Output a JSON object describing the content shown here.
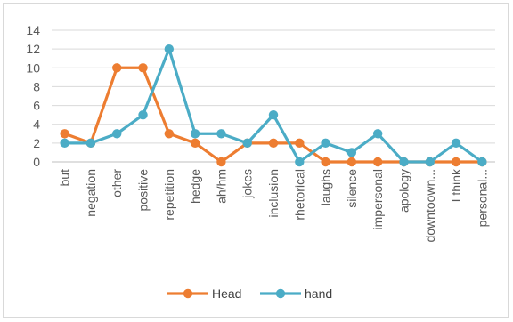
{
  "chart_data": {
    "type": "line",
    "categories": [
      "but",
      "negation",
      "other",
      "positive",
      "repetition",
      "hedge",
      "ah/hm",
      "jokes",
      "inclusion",
      "rhetorical",
      "laughs",
      "silence",
      "impersonal",
      "apology",
      "downtoown...",
      "I think",
      "personal..."
    ],
    "ylim": [
      0,
      14
    ],
    "yticks": [
      0,
      2,
      4,
      6,
      8,
      10,
      12,
      14
    ],
    "grid": true,
    "legend_position": "bottom",
    "series": [
      {
        "name": "Head",
        "color": "#ED7D31",
        "values": [
          3,
          2,
          10,
          10,
          3,
          2,
          0,
          2,
          2,
          2,
          0,
          0,
          0,
          0,
          0,
          0,
          0
        ]
      },
      {
        "name": "hand",
        "color": "#4BACC6",
        "values": [
          2,
          2,
          3,
          5,
          12,
          3,
          3,
          2,
          5,
          0,
          2,
          1,
          3,
          0,
          0,
          2,
          0
        ]
      }
    ]
  }
}
